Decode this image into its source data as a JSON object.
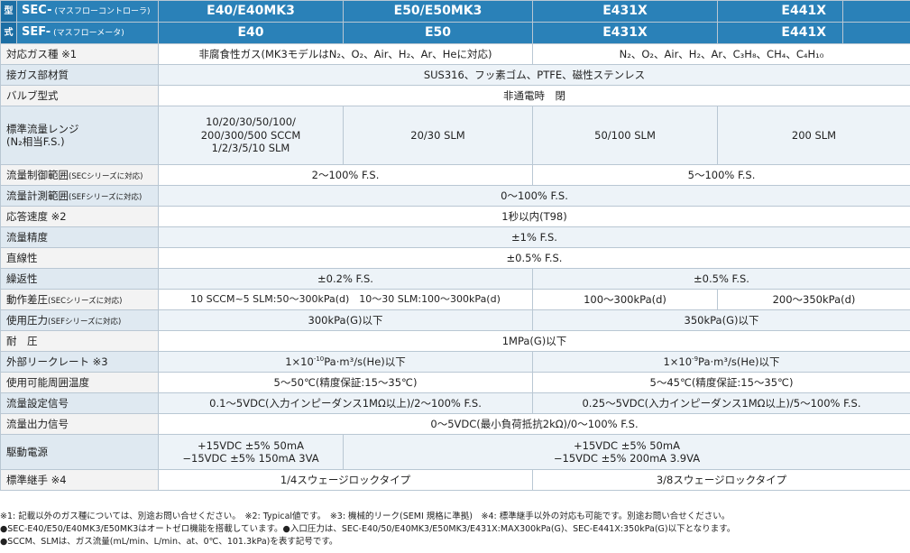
{
  "header": {
    "kata_1": "型",
    "kata_2": "式",
    "row1": {
      "model": "SEC-",
      "model_sub": "(マスフローコントローラ)",
      "cols": [
        "E40/E40MK3",
        "E50/E50MK3",
        "E431X",
        "E441X"
      ]
    },
    "row2": {
      "model": "SEF-",
      "model_sub": "(マスフローメータ)",
      "cols": [
        "E40",
        "E50",
        "E431X",
        "E441X"
      ]
    }
  },
  "rows": {
    "gas": {
      "label": "対応ガス種 ※1",
      "v1": "非腐食性ガス(MK3モデルはN₂、O₂、Air、H₂、Ar、Heに対応)",
      "v2": "N₂、O₂、Air、H₂、Ar、C₃H₈、CH₄、C₄H₁₀"
    },
    "material": {
      "label": "接ガス部材質",
      "v": "SUS316、フッ素ゴム、PTFE、磁性ステンレス"
    },
    "valve": {
      "label": "バルブ型式",
      "v": "非通電時　閉"
    },
    "range": {
      "label_1": "標準流量レンジ",
      "label_2": "(N₂相当F.S.)",
      "v1_1": "10/20/30/50/100/",
      "v1_2": "200/300/500 SCCM",
      "v1_3": "1/2/3/5/10 SLM",
      "v2": "20/30 SLM",
      "v3": "50/100 SLM",
      "v4": "200 SLM"
    },
    "control_range": {
      "label": "流量制御範囲",
      "label_sub": "(SECシリーズに対応)",
      "v1": "2～100% F.S.",
      "v2": "5～100% F.S."
    },
    "measure_range": {
      "label": "流量計測範囲",
      "label_sub": "(SEFシリーズに対応)",
      "v": "0～100% F.S."
    },
    "response": {
      "label": "応答速度 ※2",
      "v": "1秒以内(T98)"
    },
    "accuracy": {
      "label": "流量精度",
      "v": "±1% F.S."
    },
    "linearity": {
      "label": "直線性",
      "v": "±0.5% F.S."
    },
    "repeatability": {
      "label": "繰返性",
      "v1": "±0.2% F.S.",
      "v2": "±0.5% F.S."
    },
    "diff_pressure": {
      "label": "動作差圧",
      "label_sub": "(SECシリーズに対応)",
      "v1": "10 SCCM~5 SLM:50～300kPa(d)　10～30 SLM:100～300kPa(d)",
      "v2": "100～300kPa(d)",
      "v3": "200～350kPa(d)"
    },
    "use_pressure": {
      "label": "使用圧力",
      "label_sub": "(SEFシリーズに対応)",
      "v1": "300kPa(G)以下",
      "v2": "350kPa(G)以下"
    },
    "withstand": {
      "label": "耐　圧",
      "v": "1MPa(G)以下"
    },
    "leak": {
      "label": "外部リークレート ※3",
      "v1_pre": "1×10",
      "v1_exp": "-10",
      "v1_post": "Pa·m³/s(He)以下",
      "v2_pre": "1×10",
      "v2_exp": "-9",
      "v2_post": "Pa·m³/s(He)以下"
    },
    "temperature": {
      "label": "使用可能周囲温度",
      "v1": "5～50℃(精度保証:15～35℃)",
      "v2": "5～45℃(精度保証:15～35℃)"
    },
    "set_signal": {
      "label": "流量設定信号",
      "v1": "0.1～5VDC(入力インピーダンス1MΩ以上)/2～100% F.S.",
      "v2": "0.25～5VDC(入力インピーダンス1MΩ以上)/5～100% F.S."
    },
    "out_signal": {
      "label": "流量出力信号",
      "v": "0～5VDC(最小負荷抵抗2kΩ)/0～100% F.S."
    },
    "power": {
      "label": "駆動電源",
      "v1_1": "+15VDC ±5%  50mA",
      "v1_2": "−15VDC ±5%  150mA  3VA",
      "v2_1": "+15VDC ±5%  50mA",
      "v2_2": "−15VDC ±5%  200mA  3.9VA"
    },
    "fitting": {
      "label": "標準継手 ※4",
      "v1": "1/4スウェージロックタイプ",
      "v2": "3/8スウェージロックタイプ"
    }
  },
  "notes": {
    "line1": "※1: 記載以外のガス種については、別途お問い合せください。　※2: Typical値です。　※3: 機械的リーク(SEMI 規格に準拠)　※4: 標準継手以外の対応も可能です。別途お問い合せください。",
    "line2": "●SEC-E40/E50/E40MK3/E50MK3はオートゼロ機能を搭載しています。●入口圧力は、SEC-E40/50/E40MK3/E50MK3/E431X:MAX300kPa(G)、SEC-E441X:350kPa(G)以下となります。",
    "line3": "●SCCM、SLMは、ガス流量(mL/min、L/min、at、0℃、101.3kPa)を表す記号です。"
  },
  "colors": {
    "header_bg": "#2a81b8",
    "header_dark": "#1c6ea4",
    "alt_row": "#edf3f8",
    "border": "#b9c7d3"
  }
}
